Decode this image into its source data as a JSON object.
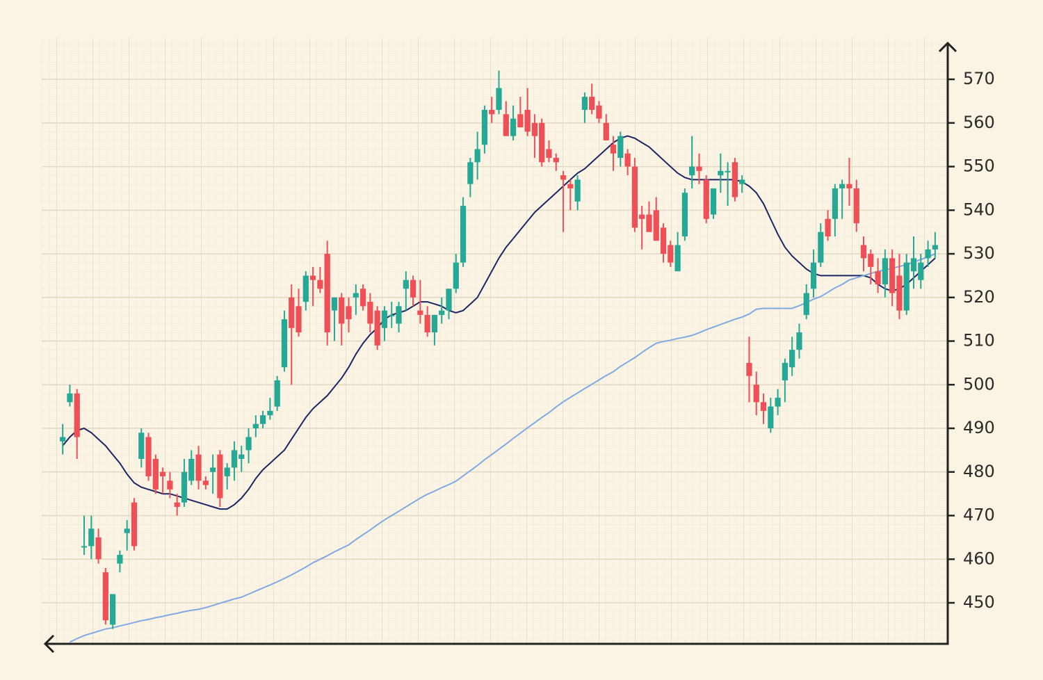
{
  "chart_data": {
    "type": "candlestick",
    "ylim": [
      440.6,
      578.3
    ],
    "yticks": [
      450,
      460,
      470,
      480,
      490,
      500,
      510,
      520,
      530,
      540,
      550,
      560,
      570
    ],
    "grid": true,
    "up_color": "#25a896",
    "down_color": "#ef4f56",
    "open": [
      487,
      496,
      498,
      463,
      463,
      465,
      457,
      445,
      459,
      466,
      473,
      483,
      488,
      483,
      480,
      478,
      473,
      473,
      478,
      484,
      478,
      480,
      484,
      479,
      481,
      483,
      485,
      490,
      491,
      493,
      495,
      504,
      520,
      518,
      519,
      525,
      524,
      530,
      517,
      520,
      518,
      520,
      522,
      519,
      517,
      513,
      516,
      514,
      522,
      524,
      517,
      516,
      512,
      516,
      517,
      522,
      528,
      546,
      551,
      555,
      563,
      563,
      562,
      557,
      562,
      563,
      560,
      560,
      554,
      552,
      548,
      546,
      542,
      563,
      566,
      564,
      560,
      555,
      552,
      553,
      550,
      539,
      539,
      540,
      536,
      532,
      526,
      534,
      548,
      550,
      547,
      539,
      548,
      549,
      551,
      546,
      505,
      500,
      496,
      490,
      495,
      501,
      504,
      508,
      516,
      522,
      528,
      538,
      538,
      545,
      546,
      545,
      532,
      530,
      526,
      523,
      529,
      525,
      517,
      526,
      524,
      529,
      531
    ],
    "high": [
      491,
      500,
      499,
      470,
      470,
      467,
      458,
      452,
      462,
      469,
      474,
      490,
      489,
      484,
      481,
      480,
      475,
      483,
      485,
      486,
      479,
      484,
      485,
      482,
      487,
      486,
      490,
      493,
      494,
      497,
      502,
      517,
      523,
      522,
      526,
      527,
      527,
      533,
      520,
      521,
      520,
      523,
      523,
      521,
      518,
      518,
      519,
      519,
      526,
      525,
      524,
      518,
      516,
      520,
      522,
      530,
      543,
      552,
      558,
      564,
      566,
      572,
      565,
      564,
      566,
      568,
      562,
      561,
      556,
      553,
      549,
      547,
      548,
      567,
      569,
      565,
      562,
      557,
      558,
      554,
      552,
      541,
      542,
      543,
      537,
      533,
      535,
      545,
      557,
      553,
      548,
      545,
      553,
      551,
      552,
      548,
      511,
      503,
      498,
      497,
      499,
      506,
      511,
      514,
      523,
      531,
      537,
      540,
      546,
      547,
      552,
      547,
      534,
      531,
      529,
      531,
      531,
      530,
      530,
      534,
      530,
      533,
      535
    ],
    "low": [
      484,
      495,
      483,
      461,
      460,
      459,
      445,
      444,
      457,
      462,
      462,
      481,
      478,
      475,
      475,
      474,
      470,
      472,
      477,
      476,
      476,
      475,
      472,
      476,
      478,
      480,
      482,
      488,
      490,
      492,
      494,
      503,
      500,
      511,
      517,
      518,
      521,
      509,
      510,
      509,
      512,
      516,
      517,
      512,
      508,
      510,
      513,
      512,
      517,
      518,
      514,
      511,
      509,
      514,
      515,
      521,
      527,
      543,
      547,
      553,
      560,
      562,
      557,
      556,
      559,
      557,
      552,
      550,
      551,
      549,
      535,
      540,
      540,
      560,
      562,
      560,
      556,
      549,
      550,
      548,
      535,
      531,
      535,
      533,
      528,
      527,
      526,
      533,
      545,
      546,
      537,
      538,
      544,
      541,
      542,
      544,
      496,
      493,
      491,
      489,
      493,
      496,
      502,
      506,
      515,
      520,
      527,
      533,
      534,
      538,
      541,
      535,
      526,
      523,
      521,
      520,
      518,
      515,
      516,
      522,
      522,
      527,
      529
    ],
    "close": [
      488,
      498,
      488,
      463,
      467,
      460,
      446,
      452,
      461,
      467,
      463,
      489,
      479,
      476,
      479,
      476,
      472,
      480,
      483,
      478,
      477,
      481,
      474,
      481,
      485,
      484,
      488,
      491,
      493,
      494,
      501,
      515,
      513,
      512,
      525,
      524,
      522,
      512,
      520,
      514,
      515,
      521,
      518,
      514,
      509,
      517,
      516,
      518,
      524,
      520,
      516,
      512,
      516,
      517,
      522,
      528,
      541,
      551,
      554,
      563,
      562,
      568,
      557,
      561,
      559,
      558,
      557,
      551,
      552,
      551,
      547,
      545,
      547,
      566,
      563,
      561,
      556,
      553,
      557,
      550,
      536,
      538,
      535,
      533,
      530,
      528,
      532,
      544,
      550,
      549,
      538,
      545,
      549,
      549,
      543,
      547,
      502,
      496,
      494,
      495,
      497,
      505,
      508,
      512,
      521,
      528,
      535,
      534,
      545,
      546,
      545,
      537,
      529,
      527,
      523,
      529,
      521,
      517,
      528,
      529,
      528,
      531,
      532
    ],
    "lines": [
      {
        "color": "#1b2563",
        "values": [
          486,
          488,
          489.5,
          490,
          489,
          487.5,
          486,
          484,
          482,
          479.5,
          477.5,
          476.5,
          476,
          475.5,
          475,
          475,
          474.5,
          474,
          473.5,
          473,
          472.5,
          472,
          471.5,
          471.5,
          472.5,
          474,
          476,
          478.5,
          480.5,
          482,
          483.5,
          485,
          487.5,
          490,
          492.5,
          494.5,
          496,
          497.5,
          499.5,
          501.5,
          504,
          507,
          509.5,
          511.5,
          513,
          515,
          516,
          516.5,
          517,
          518,
          519,
          519,
          518.5,
          518,
          517,
          516.5,
          517,
          518.5,
          520,
          523,
          526,
          529,
          531.5,
          533.5,
          535.5,
          537.5,
          539.5,
          541,
          542.5,
          544,
          545.5,
          547,
          548.5,
          549.5,
          551,
          552.5,
          554,
          555.5,
          556.5,
          557,
          556.5,
          555.5,
          554.5,
          553,
          551.5,
          550,
          548.5,
          547.5,
          547,
          547,
          547,
          547,
          547,
          547,
          547,
          546.5,
          545.5,
          544,
          541.5,
          538,
          534.5,
          531.5,
          529.5,
          528,
          526.5,
          525.5,
          525,
          525,
          525,
          525,
          525,
          525,
          525,
          524.5,
          523,
          522,
          521.5,
          522,
          523,
          524.5,
          526,
          527.5,
          529
        ]
      },
      {
        "color": "#7fa9e3",
        "values": [
          null,
          441,
          441.8,
          442.5,
          443,
          443.5,
          444,
          444.3,
          444.7,
          445.1,
          445.5,
          445.9,
          446.2,
          446.6,
          446.9,
          447.3,
          447.6,
          448,
          448.3,
          448.5,
          448.9,
          449.4,
          449.9,
          450.4,
          450.9,
          451.3,
          452,
          452.7,
          453.4,
          454.1,
          454.8,
          455.6,
          456.4,
          457.3,
          458.2,
          459.2,
          460,
          460.8,
          461.7,
          462.5,
          463.3,
          464.5,
          465.6,
          466.7,
          467.9,
          469,
          470,
          471,
          472,
          473,
          474,
          474.9,
          475.6,
          476.4,
          477.1,
          477.9,
          479.1,
          480.3,
          481.5,
          482.8,
          484,
          485.2,
          486.4,
          487.7,
          488.9,
          490.1,
          491.3,
          492.5,
          493.6,
          494.9,
          496.1,
          497.1,
          498.1,
          499.1,
          500.1,
          501.1,
          502.1,
          503,
          504.2,
          505.2,
          506.2,
          507.4,
          508.5,
          509.5,
          509.9,
          510.2,
          510.6,
          510.9,
          511.3,
          511.9,
          512.6,
          513.2,
          513.8,
          514.4,
          515,
          515.5,
          516.2,
          517.3,
          517.5,
          517.5,
          517.5,
          517.5,
          517.5,
          518.1,
          518.8,
          519.6,
          520.2,
          521.2,
          522.2,
          523,
          524,
          524.5,
          525,
          525.5,
          526,
          526.3,
          526.7,
          527.1,
          527.5,
          528.1,
          528.7,
          529.3,
          530
        ]
      }
    ]
  }
}
